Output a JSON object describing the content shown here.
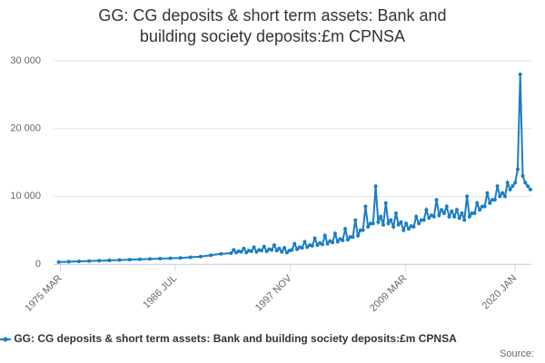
{
  "chart_data": {
    "type": "line",
    "title": "GG: CG deposits & short term assets: Bank and building society deposits:£m CPNSA",
    "source": "Source:",
    "x": [
      1975,
      1976,
      1977,
      1978,
      1979,
      1980,
      1981,
      1982,
      1983,
      1984,
      1985,
      1986,
      1987,
      1988,
      1989,
      1990,
      1991,
      1992,
      1992.25,
      1992.5,
      1992.75,
      1993,
      1993.25,
      1993.5,
      1993.75,
      1994,
      1994.25,
      1994.5,
      1994.75,
      1995,
      1995.25,
      1995.5,
      1995.75,
      1996,
      1996.25,
      1996.5,
      1996.75,
      1997,
      1997.25,
      1997.5,
      1997.75,
      1998,
      1998.25,
      1998.5,
      1998.75,
      1999,
      1999.25,
      1999.5,
      1999.75,
      2000,
      2000.25,
      2000.5,
      2000.75,
      2001,
      2001.25,
      2001.5,
      2001.75,
      2002,
      2002.25,
      2002.5,
      2002.75,
      2003,
      2003.25,
      2003.5,
      2003.75,
      2004,
      2004.25,
      2004.5,
      2004.75,
      2005,
      2005.25,
      2005.5,
      2005.75,
      2006,
      2006.25,
      2006.5,
      2006.75,
      2007,
      2007.25,
      2007.5,
      2007.75,
      2008,
      2008.25,
      2008.5,
      2008.75,
      2009,
      2009.25,
      2009.5,
      2009.75,
      2010,
      2010.25,
      2010.5,
      2010.75,
      2011,
      2011.25,
      2011.5,
      2011.75,
      2012,
      2012.25,
      2012.5,
      2012.75,
      2013,
      2013.25,
      2013.5,
      2013.75,
      2014,
      2014.25,
      2014.5,
      2014.75,
      2015,
      2015.25,
      2015.5,
      2015.75,
      2016,
      2016.25,
      2016.5,
      2016.75,
      2017,
      2017.25,
      2017.5,
      2017.75,
      2018,
      2018.25,
      2018.5,
      2018.75,
      2019,
      2019.25,
      2019.5,
      2019.75,
      2020,
      2020.25,
      2020.5,
      2020.75,
      2021,
      2021.25,
      2021.5
    ],
    "series": [
      {
        "name": "GG: CG deposits & short term assets: Bank and building society deposits:£m CPNSA",
        "color": "#1a7dc4",
        "values": [
          300,
          350,
          400,
          450,
          500,
          550,
          600,
          650,
          700,
          750,
          800,
          850,
          900,
          1000,
          1100,
          1300,
          1500,
          1600,
          2100,
          1700,
          1900,
          1800,
          2300,
          1700,
          2000,
          1900,
          2500,
          1800,
          2100,
          2000,
          2600,
          1900,
          2200,
          2100,
          2800,
          2000,
          2300,
          1800,
          2400,
          1700,
          2000,
          2100,
          3000,
          2200,
          2500,
          2400,
          3300,
          2500,
          2800,
          2700,
          3800,
          2800,
          3100,
          2900,
          4200,
          3000,
          3400,
          3200,
          4500,
          3300,
          3700,
          3500,
          5200,
          3600,
          4000,
          4000,
          6500,
          4200,
          5000,
          5000,
          8500,
          5500,
          6000,
          6000,
          11500,
          6200,
          7000,
          5800,
          9000,
          6000,
          6500,
          5500,
          7500,
          5800,
          6200,
          5000,
          6000,
          5200,
          5600,
          5500,
          7000,
          6000,
          6500,
          6500,
          8000,
          6800,
          7200,
          7000,
          9500,
          7200,
          8000,
          7500,
          8500,
          7000,
          7800,
          7000,
          8000,
          6800,
          7500,
          6500,
          10000,
          7000,
          7500,
          7500,
          9000,
          8000,
          8500,
          8500,
          10500,
          9000,
          9500,
          9500,
          11500,
          10000,
          10500,
          10000,
          12000,
          11000,
          11500,
          12000,
          14000,
          28000,
          13000,
          12000,
          11500,
          11000
        ]
      }
    ],
    "xlim": [
      1974.5,
      2021.6
    ],
    "xticks": [
      {
        "value": 1975.17,
        "label": "1975 MAR"
      },
      {
        "value": 1986.5,
        "label": "1986 JUL"
      },
      {
        "value": 1997.83,
        "label": "1997 NOV"
      },
      {
        "value": 2009.17,
        "label": "2009 MAR"
      },
      {
        "value": 2020.0,
        "label": "2020 JAN"
      }
    ],
    "ylim": [
      0,
      30000
    ],
    "yticks": [
      0,
      {
        "value": 10000,
        "label": "10 000"
      },
      {
        "value": 20000,
        "label": "20 000"
      },
      {
        "value": 30000,
        "label": "30 000"
      }
    ],
    "grid": true
  }
}
